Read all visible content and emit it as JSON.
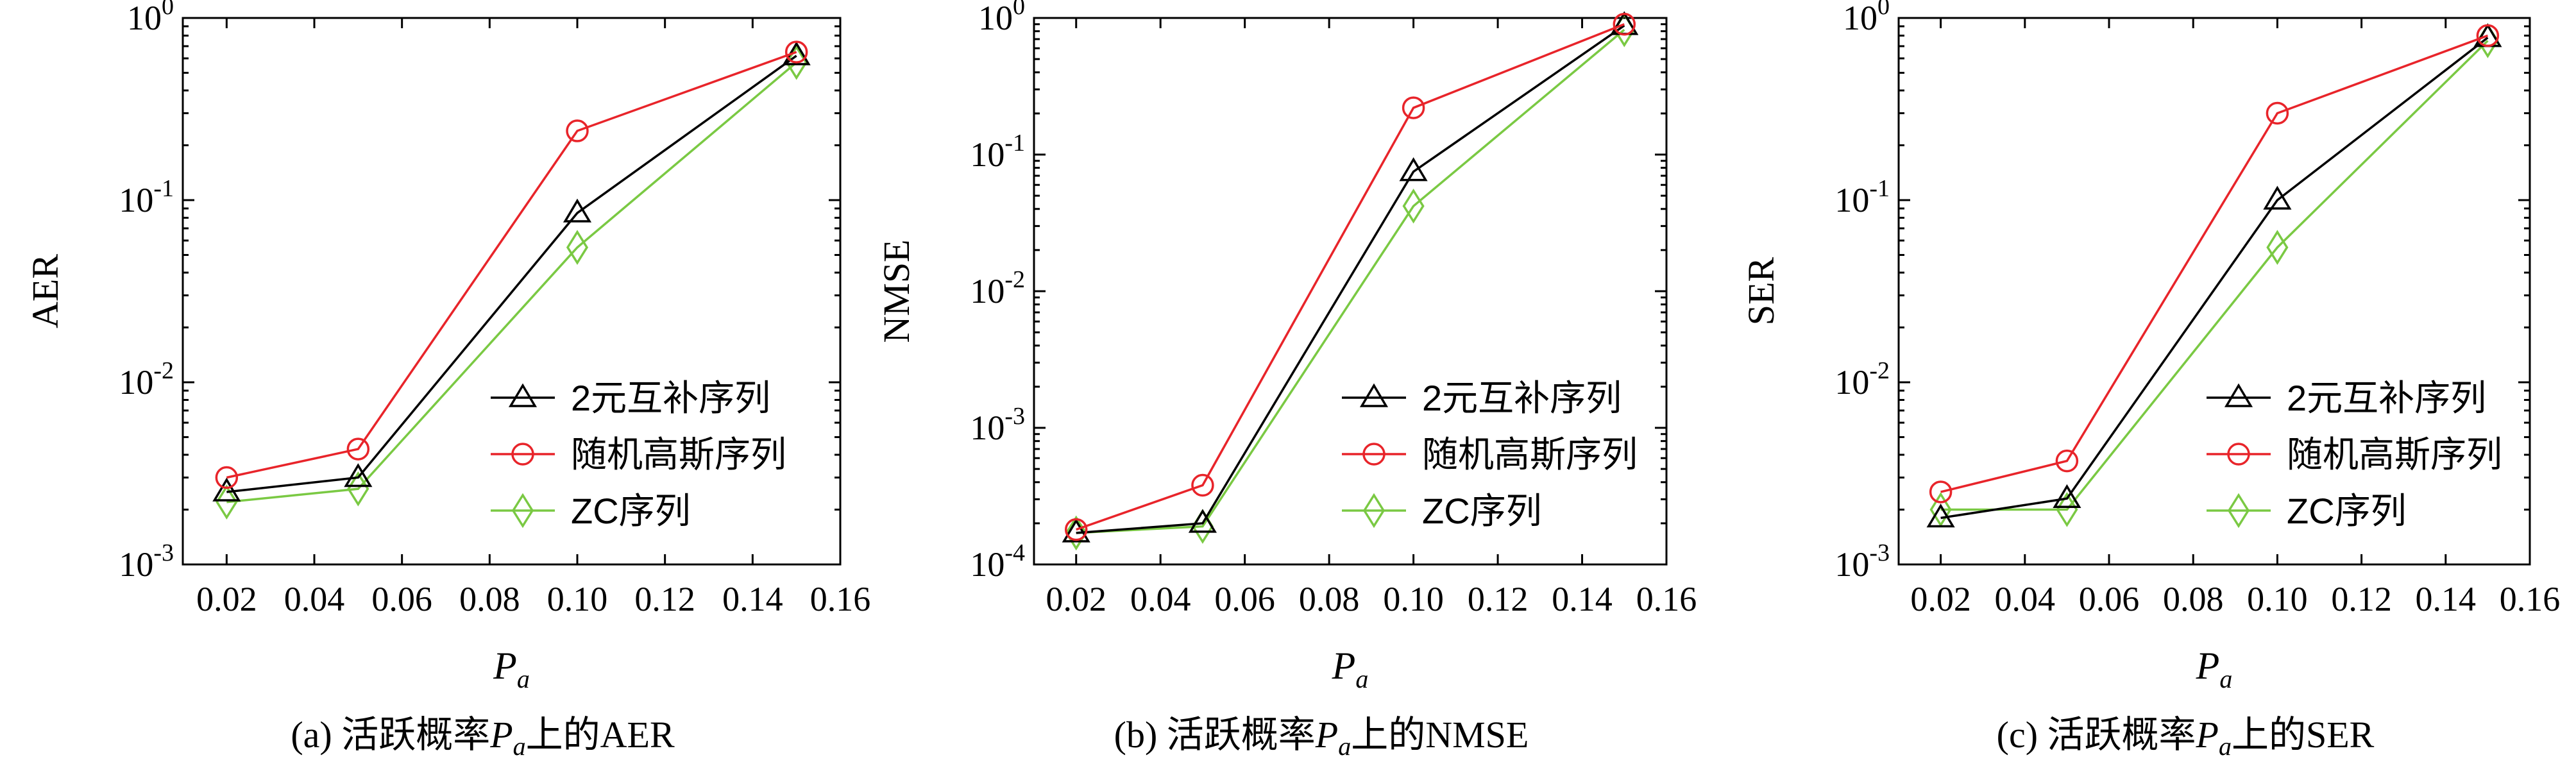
{
  "chart_data": [
    {
      "type": "line",
      "caption_prefix": "(a) 活跃概率",
      "caption_var": "P",
      "caption_sub": "a",
      "caption_suffix": "上的AER",
      "xlabel": "P",
      "xlabel_sub": "a",
      "ylabel": "AER",
      "xlim": [
        0.01,
        0.16
      ],
      "ylim": [
        0.001,
        1
      ],
      "yscale": "log",
      "xticks": [
        "0.02",
        "0.04",
        "0.06",
        "0.08",
        "0.10",
        "0.12",
        "0.14",
        "0.16"
      ],
      "yticks": [
        {
          "base": "10",
          "exp": "-3"
        },
        {
          "base": "10",
          "exp": "-2"
        },
        {
          "base": "10",
          "exp": "-1"
        },
        {
          "base": "10",
          "exp": "0"
        }
      ],
      "legend_position": "lower-right",
      "series": [
        {
          "name": "2元互补序列",
          "color": "#000000",
          "marker": "triangle",
          "x": [
            0.02,
            0.05,
            0.1,
            0.15
          ],
          "y": [
            0.0025,
            0.003,
            0.085,
            0.62
          ]
        },
        {
          "name": "随机高斯序列",
          "color": "#e8242a",
          "marker": "circle",
          "x": [
            0.02,
            0.05,
            0.1,
            0.15
          ],
          "y": [
            0.003,
            0.0043,
            0.24,
            0.65
          ]
        },
        {
          "name": "ZC序列",
          "color": "#7ac943",
          "marker": "diamond",
          "x": [
            0.02,
            0.05,
            0.1,
            0.15
          ],
          "y": [
            0.0022,
            0.0026,
            0.055,
            0.57
          ]
        }
      ]
    },
    {
      "type": "line",
      "caption_prefix": "(b) 活跃概率",
      "caption_var": "P",
      "caption_sub": "a",
      "caption_suffix": "上的NMSE",
      "xlabel": "P",
      "xlabel_sub": "a",
      "ylabel": "NMSE",
      "xlim": [
        0.01,
        0.16
      ],
      "ylim": [
        0.0001,
        1
      ],
      "yscale": "log",
      "xticks": [
        "0.02",
        "0.04",
        "0.06",
        "0.08",
        "0.10",
        "0.12",
        "0.14",
        "0.16"
      ],
      "yticks": [
        {
          "base": "10",
          "exp": "-4"
        },
        {
          "base": "10",
          "exp": "-3"
        },
        {
          "base": "10",
          "exp": "-2"
        },
        {
          "base": "10",
          "exp": "-1"
        },
        {
          "base": "10",
          "exp": "0"
        }
      ],
      "legend_position": "lower-right",
      "series": [
        {
          "name": "2元互补序列",
          "color": "#000000",
          "marker": "triangle",
          "x": [
            0.02,
            0.05,
            0.1,
            0.15
          ],
          "y": [
            0.00017,
            0.0002,
            0.075,
            0.88
          ]
        },
        {
          "name": "随机高斯序列",
          "color": "#e8242a",
          "marker": "circle",
          "x": [
            0.02,
            0.05,
            0.1,
            0.15
          ],
          "y": [
            0.00018,
            0.00038,
            0.22,
            0.9
          ]
        },
        {
          "name": "ZC序列",
          "color": "#7ac943",
          "marker": "diamond",
          "x": [
            0.02,
            0.05,
            0.1,
            0.15
          ],
          "y": [
            0.00017,
            0.00019,
            0.042,
            0.82
          ]
        }
      ]
    },
    {
      "type": "line",
      "caption_prefix": "(c) 活跃概率",
      "caption_var": "P",
      "caption_sub": "a",
      "caption_suffix": "上的SER",
      "xlabel": "P",
      "xlabel_sub": "a",
      "ylabel": "SER",
      "xlim": [
        0.01,
        0.16
      ],
      "ylim": [
        0.001,
        1
      ],
      "yscale": "log",
      "xticks": [
        "0.02",
        "0.04",
        "0.06",
        "0.08",
        "0.10",
        "0.12",
        "0.14",
        "0.16"
      ],
      "yticks": [
        {
          "base": "10",
          "exp": "-3"
        },
        {
          "base": "10",
          "exp": "-2"
        },
        {
          "base": "10",
          "exp": "-1"
        },
        {
          "base": "10",
          "exp": "0"
        }
      ],
      "legend_position": "lower-right",
      "series": [
        {
          "name": "2元互补序列",
          "color": "#000000",
          "marker": "triangle",
          "x": [
            0.02,
            0.05,
            0.1,
            0.15
          ],
          "y": [
            0.0018,
            0.0023,
            0.1,
            0.78
          ]
        },
        {
          "name": "随机高斯序列",
          "color": "#e8242a",
          "marker": "circle",
          "x": [
            0.02,
            0.05,
            0.1,
            0.15
          ],
          "y": [
            0.0025,
            0.0037,
            0.3,
            0.8
          ]
        },
        {
          "name": "ZC序列",
          "color": "#7ac943",
          "marker": "diamond",
          "x": [
            0.02,
            0.05,
            0.1,
            0.15
          ],
          "y": [
            0.002,
            0.002,
            0.055,
            0.75
          ]
        }
      ]
    }
  ]
}
